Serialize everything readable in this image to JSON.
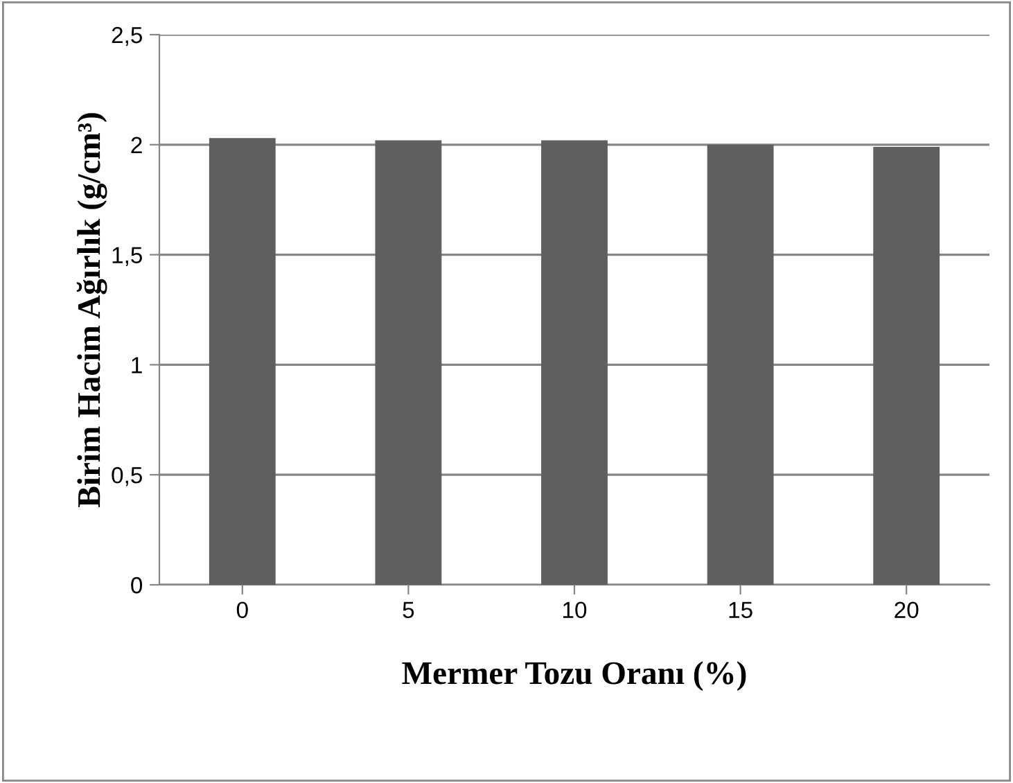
{
  "chart_data": {
    "type": "bar",
    "xlabel": "Mermer Tozu Oranı (%)",
    "ylabel": "Birim Hacim Ağırlık (g/cm³)",
    "categories": [
      "0",
      "5",
      "10",
      "15",
      "20"
    ],
    "values": [
      2.03,
      2.02,
      2.02,
      2.0,
      1.99
    ],
    "color": "#5f5f5f",
    "ylim": [
      0,
      2.5
    ],
    "yticks": [
      0,
      {
        "value": 0.5,
        "label": "0,5"
      },
      1,
      {
        "value": 1.5,
        "label": "1,5"
      },
      2,
      {
        "value": 2.5,
        "label": "2,5"
      }
    ],
    "grid": "y",
    "legend": false
  }
}
